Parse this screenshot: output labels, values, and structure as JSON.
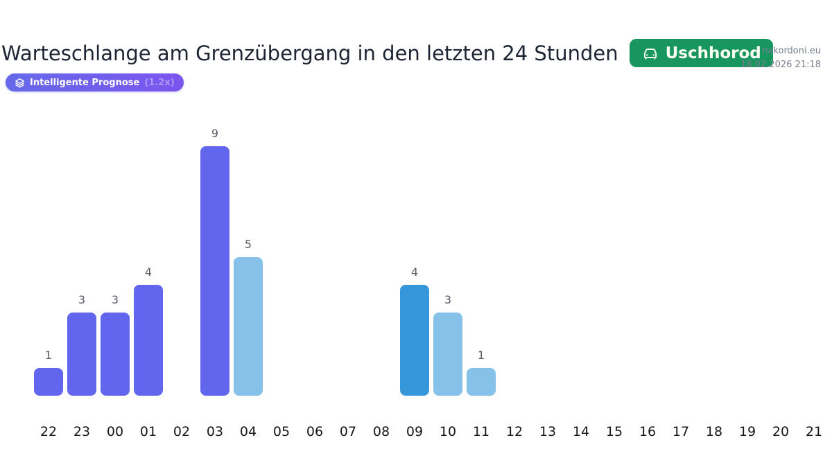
{
  "header": {
    "site": "nakordoni.eu",
    "timestamp": "18.02.2026 21:18"
  },
  "title": {
    "text": "Warteschlange am Grenzübergang in den letzten 24 Stunden",
    "checkpoint": "Uschhorod"
  },
  "forecast_badge": {
    "label": "Intelligente Prognose",
    "multiplier": "(1.2x)"
  },
  "colors": {
    "badge_green": "#18965f",
    "pill_purple_start": "#6569ea",
    "pill_purple_end": "#7c55ee",
    "bar_purple": "#6266ee",
    "bar_lightblue": "#85c1e9",
    "bar_blue": "#3696da"
  },
  "chart_data": {
    "type": "bar",
    "title": "Warteschlange am Grenzübergang in den letzten 24 Stunden",
    "xlabel": "",
    "ylabel": "",
    "ylim": [
      0,
      9
    ],
    "grid": false,
    "legend": false,
    "categories": [
      "22",
      "23",
      "00",
      "01",
      "02",
      "03",
      "04",
      "05",
      "06",
      "07",
      "08",
      "09",
      "10",
      "11",
      "12",
      "13",
      "14",
      "15",
      "16",
      "17",
      "18",
      "19",
      "20",
      "21"
    ],
    "values": [
      1,
      3,
      3,
      4,
      0,
      9,
      5,
      0,
      0,
      0,
      0,
      4,
      3,
      1,
      0,
      0,
      0,
      0,
      0,
      0,
      0,
      0,
      0,
      0
    ],
    "bar_colors": [
      "purple",
      "purple",
      "purple",
      "purple",
      "",
      "purple",
      "lightblue",
      "",
      "",
      "",
      "",
      "blue",
      "lightblue",
      "lightblue",
      "",
      "",
      "",
      "",
      "",
      "",
      "",
      "",
      "",
      ""
    ]
  }
}
